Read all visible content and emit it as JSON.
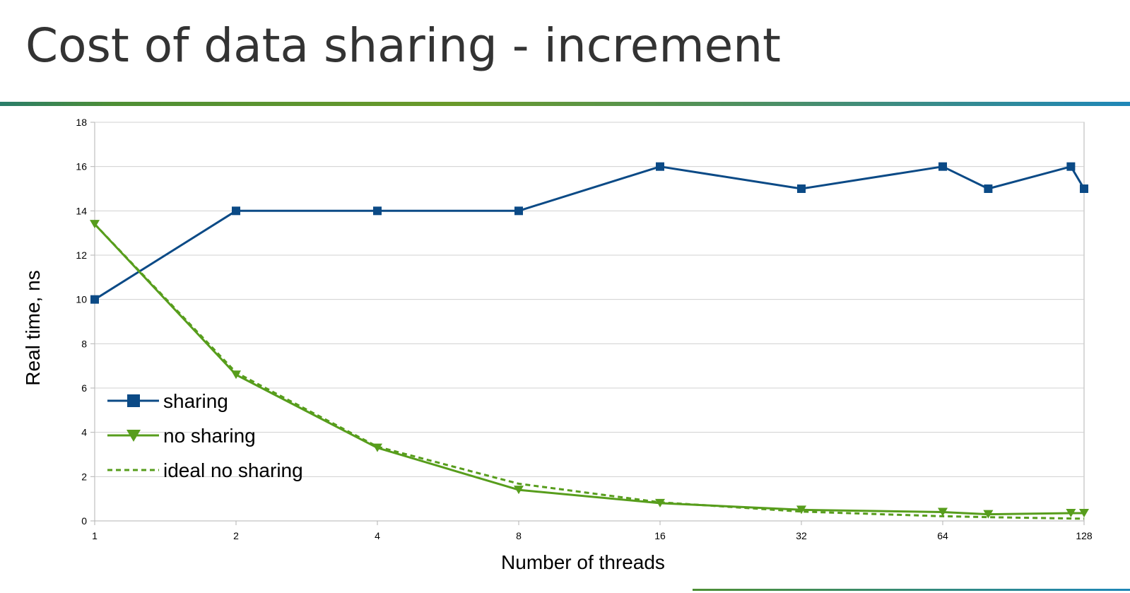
{
  "slide": {
    "title": "Cost of data sharing - increment"
  },
  "chart_data": {
    "type": "line",
    "xlabel": "Number of threads",
    "ylabel": "Real time, ns",
    "x_scale": "log2",
    "x_ticks": [
      1,
      2,
      4,
      8,
      16,
      32,
      64,
      128
    ],
    "xlim": [
      1,
      128
    ],
    "ylim": [
      0,
      18
    ],
    "y_ticks": [
      0,
      2,
      4,
      6,
      8,
      10,
      12,
      14,
      16,
      18
    ],
    "grid": true,
    "legend_position": "bottom-left",
    "series": [
      {
        "name": "sharing",
        "color": "#0b4a86",
        "marker": "square",
        "dash": false,
        "points": [
          [
            1,
            10
          ],
          [
            2,
            14
          ],
          [
            4,
            14
          ],
          [
            8,
            14
          ],
          [
            16,
            16
          ],
          [
            32,
            15
          ],
          [
            64,
            16
          ],
          [
            80,
            15
          ],
          [
            120,
            16
          ],
          [
            128,
            15
          ]
        ]
      },
      {
        "name": "no sharing",
        "color": "#579d1c",
        "marker": "triangle-down",
        "dash": false,
        "points": [
          [
            1,
            13.4
          ],
          [
            2,
            6.6
          ],
          [
            4,
            3.3
          ],
          [
            8,
            1.4
          ],
          [
            16,
            0.8
          ],
          [
            32,
            0.5
          ],
          [
            64,
            0.4
          ],
          [
            80,
            0.3
          ],
          [
            120,
            0.35
          ],
          [
            128,
            0.35
          ]
        ]
      },
      {
        "name": "ideal no sharing",
        "color": "#579d1c",
        "marker": "none",
        "dash": true,
        "points": [
          [
            1,
            13.4
          ],
          [
            2,
            6.7
          ],
          [
            4,
            3.35
          ],
          [
            8,
            1.68
          ],
          [
            16,
            0.84
          ],
          [
            32,
            0.42
          ],
          [
            64,
            0.21
          ],
          [
            80,
            0.17
          ],
          [
            120,
            0.11
          ],
          [
            128,
            0.1
          ]
        ]
      }
    ]
  }
}
